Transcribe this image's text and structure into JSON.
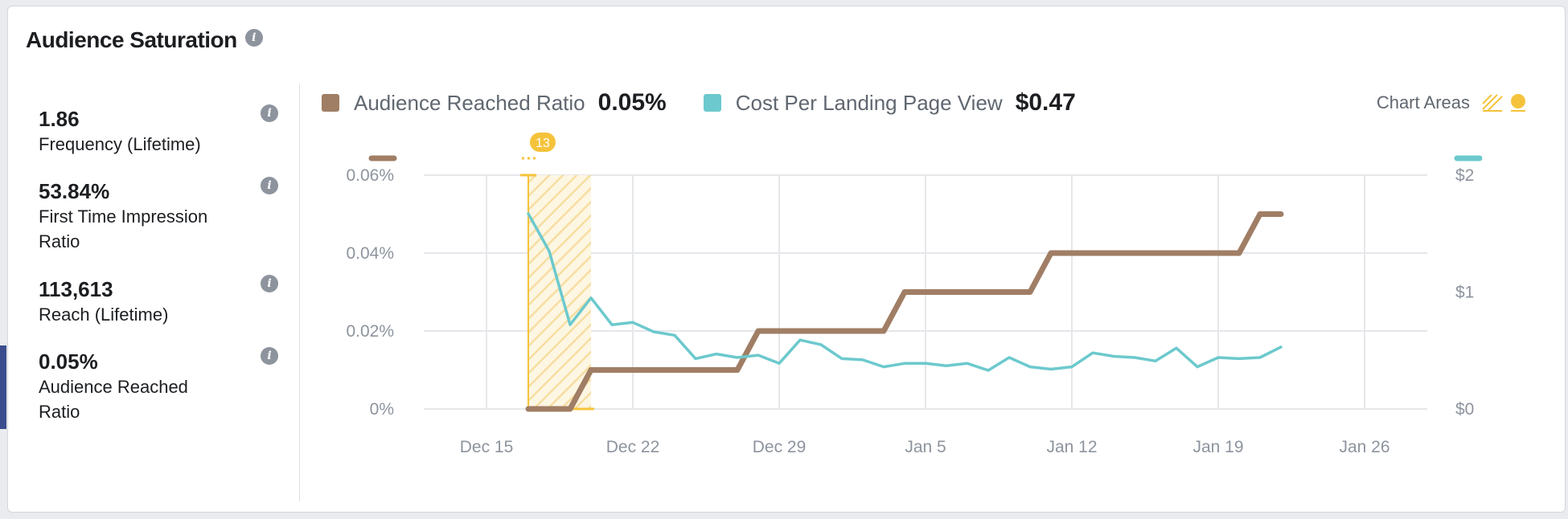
{
  "panel": {
    "title": "Audience Saturation",
    "title_info_icon": "info-icon"
  },
  "metrics": [
    {
      "value": "1.86",
      "label": "Frequency (Lifetime)",
      "active": false
    },
    {
      "value": "53.84%",
      "label": "First Time Impression Ratio",
      "active": false
    },
    {
      "value": "113,613",
      "label": "Reach (Lifetime)",
      "active": false
    },
    {
      "value": "0.05%",
      "label": "Audience Reached Ratio",
      "active": true
    }
  ],
  "legend": [
    {
      "name": "Audience Reached Ratio",
      "value": "0.05%",
      "color": "#a07e65"
    },
    {
      "name": "Cost Per Landing Page View",
      "value": "$0.47",
      "color": "#6cc9cd"
    }
  ],
  "chart_areas": {
    "label": "Chart Areas",
    "icons": [
      "hatched-area-icon",
      "marker-pin-icon"
    ],
    "color": "#f5c33b"
  },
  "chart_data": {
    "type": "line",
    "x_tick_labels": [
      "Dec 15",
      "Dec 22",
      "Dec 29",
      "Jan 5",
      "Jan 12",
      "Jan 19",
      "Jan 26"
    ],
    "y_left_ticks": [
      "0.06%",
      "0.04%",
      "0.02%",
      "0%"
    ],
    "y_right_ticks": [
      "$2",
      "$1",
      "$0"
    ],
    "y_left_range": [
      0,
      0.06
    ],
    "y_right_range": [
      0,
      2
    ],
    "x_range": [
      "Dec 12",
      "Jan 29"
    ],
    "grid": true,
    "legend_position": "top-left",
    "series": [
      {
        "name": "Audience Reached Ratio",
        "axis": "left",
        "color": "#a07e65",
        "x": [
          "Dec 17",
          "Dec 18",
          "Dec 19",
          "Dec 20",
          "Dec 21",
          "Dec 22",
          "Dec 23",
          "Dec 24",
          "Dec 25",
          "Dec 26",
          "Dec 27",
          "Dec 28",
          "Dec 29",
          "Dec 30",
          "Dec 31",
          "Jan 1",
          "Jan 2",
          "Jan 3",
          "Jan 4",
          "Jan 5",
          "Jan 6",
          "Jan 7",
          "Jan 8",
          "Jan 9",
          "Jan 10",
          "Jan 11",
          "Jan 12",
          "Jan 13",
          "Jan 14",
          "Jan 15",
          "Jan 16",
          "Jan 17",
          "Jan 18",
          "Jan 19",
          "Jan 20",
          "Jan 21",
          "Jan 22"
        ],
        "values": [
          0,
          0,
          0,
          0.01,
          0.01,
          0.01,
          0.01,
          0.01,
          0.01,
          0.01,
          0.01,
          0.02,
          0.02,
          0.02,
          0.02,
          0.02,
          0.02,
          0.02,
          0.03,
          0.03,
          0.03,
          0.03,
          0.03,
          0.03,
          0.03,
          0.04,
          0.04,
          0.04,
          0.04,
          0.04,
          0.04,
          0.04,
          0.04,
          0.04,
          0.04,
          0.05,
          0.05
        ]
      },
      {
        "name": "Cost Per Landing Page View",
        "axis": "right",
        "color": "#6cc9cd",
        "x": [
          "Dec 17",
          "Dec 18",
          "Dec 19",
          "Dec 20",
          "Dec 21",
          "Dec 22",
          "Dec 23",
          "Dec 24",
          "Dec 25",
          "Dec 26",
          "Dec 27",
          "Dec 28",
          "Dec 29",
          "Dec 30",
          "Dec 31",
          "Jan 1",
          "Jan 2",
          "Jan 3",
          "Jan 4",
          "Jan 5",
          "Jan 6",
          "Jan 7",
          "Jan 8",
          "Jan 9",
          "Jan 10",
          "Jan 11",
          "Jan 12",
          "Jan 13",
          "Jan 14",
          "Jan 15",
          "Jan 16",
          "Jan 17",
          "Jan 18",
          "Jan 19",
          "Jan 20",
          "Jan 21",
          "Jan 22"
        ],
        "values": [
          1.67,
          1.35,
          0.72,
          0.95,
          0.72,
          0.74,
          0.66,
          0.63,
          0.43,
          0.47,
          0.44,
          0.46,
          0.39,
          0.59,
          0.55,
          0.43,
          0.42,
          0.36,
          0.39,
          0.39,
          0.37,
          0.39,
          0.33,
          0.44,
          0.36,
          0.34,
          0.36,
          0.48,
          0.45,
          0.44,
          0.41,
          0.52,
          0.36,
          0.44,
          0.43,
          0.44,
          0.53
        ]
      }
    ],
    "annotations": [
      {
        "type": "area",
        "start": "Dec 17",
        "end": "Dec 20",
        "marker_label": "13",
        "color": "#f5c33b"
      }
    ]
  }
}
